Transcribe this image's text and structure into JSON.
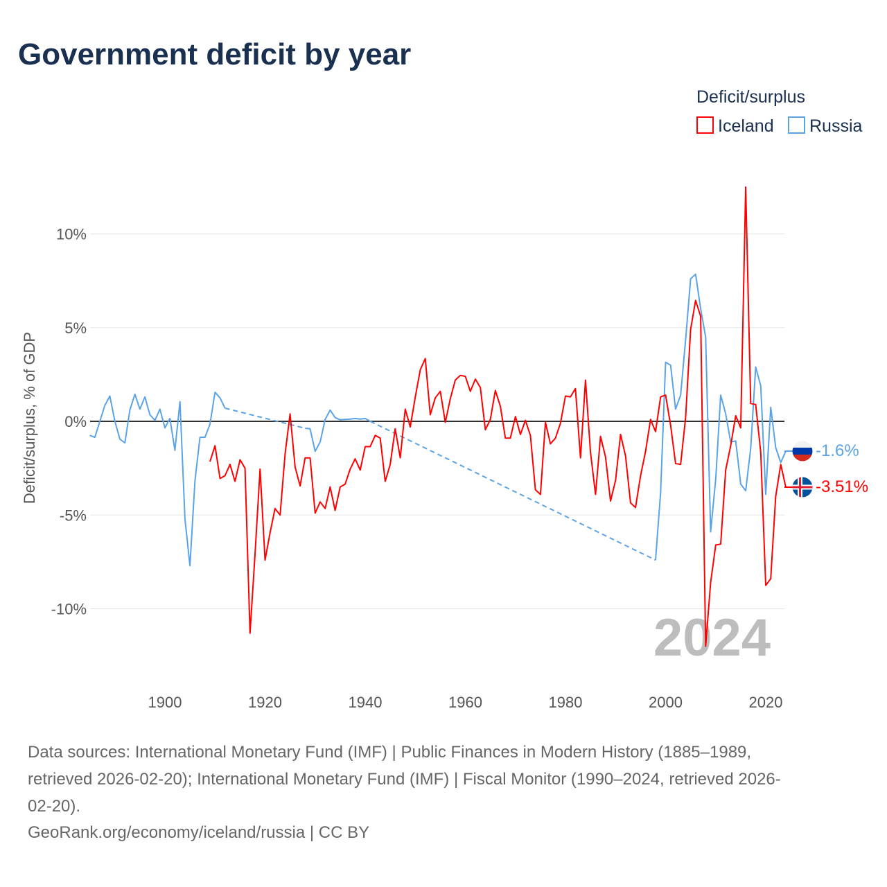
{
  "chart_data": {
    "type": "line",
    "title": "Government deficit by year",
    "ylabel": "Deficit/surplus, % of GDP",
    "xlabel": "",
    "xlim": [
      1885,
      2024
    ],
    "ylim": [
      -12.5,
      12.5
    ],
    "x_ticks": [
      1900,
      1920,
      1940,
      1960,
      1980,
      2000,
      2020
    ],
    "x_tick_labels": [
      "1900",
      "1920",
      "1940",
      "1960",
      "1980",
      "2000",
      "2020"
    ],
    "y_ticks": [
      10,
      5,
      0,
      -5,
      -10
    ],
    "y_tick_labels": [
      "10%",
      "5%",
      "0%",
      "-5%",
      "-10%"
    ],
    "grid": true,
    "legend_title": "Deficit/surplus",
    "legend_position": "top-right",
    "current_year_label": "2024",
    "series": [
      {
        "name": "Iceland",
        "color": "#ff0000",
        "end_label": "-3.51%",
        "flag": "iceland-flag",
        "start_year": 1909,
        "values": [
          -2.15,
          -1.3,
          -3.05,
          -2.9,
          -2.3,
          -3.2,
          -2.05,
          -2.5,
          -11.3,
          -7.1,
          -2.55,
          -7.4,
          -5.95,
          -4.65,
          -5.0,
          -1.75,
          0.4,
          -2.45,
          -3.45,
          -1.95,
          -1.95,
          -4.9,
          -4.3,
          -4.65,
          -3.5,
          -4.75,
          -3.5,
          -3.35,
          -2.55,
          -2.0,
          -2.6,
          -1.35,
          -1.35,
          -0.75,
          -0.9,
          -3.2,
          -2.3,
          -0.4,
          -1.95,
          0.65,
          -0.3,
          1.3,
          2.75,
          3.35,
          0.35,
          1.25,
          1.6,
          -0.05,
          1.2,
          2.2,
          2.45,
          2.4,
          1.6,
          2.25,
          1.8,
          -0.45,
          0.1,
          1.65,
          0.8,
          -0.9,
          -0.9,
          0.25,
          -0.7,
          0.05,
          -0.75,
          -3.65,
          -3.9,
          -0.05,
          -1.2,
          -0.9,
          -0.1,
          1.35,
          1.3,
          1.75,
          -1.95,
          2.2,
          -1.65,
          -3.9,
          -0.8,
          -1.9,
          -4.25,
          -3.15,
          -0.7,
          -1.85,
          -4.35,
          -4.6,
          -2.9,
          -1.6,
          0.1,
          -0.55,
          1.3,
          1.4,
          -0.2,
          -2.25,
          -2.3,
          0.2,
          4.9,
          6.45,
          5.6,
          -12.0,
          -8.6,
          -6.6,
          -6.55,
          -2.6,
          -1.3,
          0.3,
          -0.35,
          12.5,
          0.95,
          0.9,
          -1.65,
          -8.75,
          -8.4,
          -4.0,
          -2.3,
          -3.51
        ]
      },
      {
        "name": "Russia",
        "color": "#5ba3e8",
        "end_label": "-1.6%",
        "flag": "russia-flag",
        "segments": [
          {
            "start_year": 1885,
            "values": [
              -0.75,
              -0.85,
              0,
              0.85,
              1.35,
              0,
              -0.95,
              -1.15,
              0.6,
              1.45,
              0.65,
              1.3,
              0.35,
              0.05,
              0.65,
              -0.35,
              0.15,
              -1.55,
              1.05,
              -5.2,
              -7.7,
              -3.15,
              -0.85,
              -0.85,
              -0.15,
              1.55,
              1.25,
              0.7
            ]
          },
          {
            "start_year": 1928,
            "values": [
              -0.37,
              -0.4,
              -1.6,
              -1.1,
              0.1,
              0.6,
              0.2,
              0.08,
              0.1,
              0.12,
              0.15,
              0.12,
              0.15,
              0.0
            ]
          },
          {
            "start_year": 1998,
            "values": [
              -7.4,
              -3.8,
              3.15,
              3.0,
              0.65,
              1.4,
              4.35,
              7.6,
              7.85,
              6.0,
              4.5,
              -5.9,
              -3.1,
              1.4,
              0.4,
              -1.1,
              -1.05,
              -3.35,
              -3.7,
              -1.45,
              2.9,
              1.9,
              -3.9,
              0.75,
              -1.4,
              -2.2,
              -1.6
            ]
          }
        ]
      }
    ]
  },
  "footer": {
    "line1": "Data sources: International Monetary Fund (IMF) | Public Finances in Modern History (1885–1989,",
    "line2": "retrieved 2026-02-20); International Monetary Fund (IMF) | Fiscal Monitor (1990–2024, retrieved 2026-",
    "line3": "02-20).",
    "line4": "GeoRank.org/economy/iceland/russia | CC BY"
  }
}
